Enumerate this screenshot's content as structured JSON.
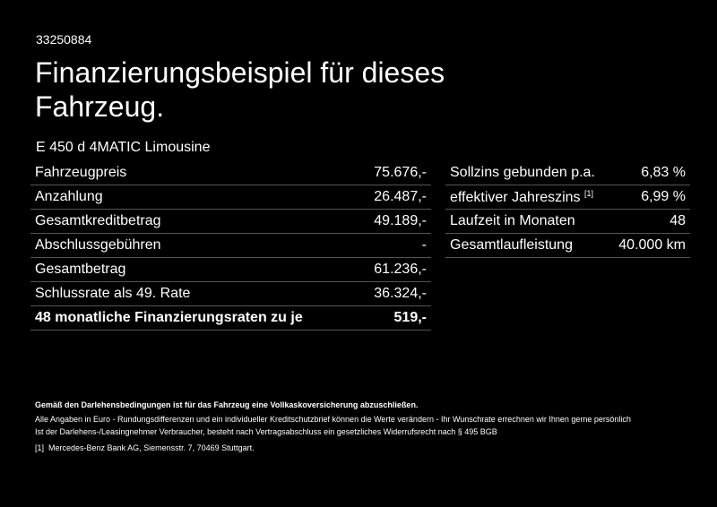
{
  "id": "33250884",
  "title": "Finanzierungsbeispiel für dieses Fahrzeug.",
  "model": "E 450 d 4MATIC Limousine",
  "left_table": [
    {
      "label": "Fahrzeugpreis",
      "value": "75.676,-"
    },
    {
      "label": "Anzahlung",
      "value": "26.487,-"
    },
    {
      "label": "Gesamtkreditbetrag",
      "value": "49.189,-"
    },
    {
      "label": "Abschlussgebühren",
      "value": "-"
    },
    {
      "label": "Gesamtbetrag",
      "value": "61.236,-"
    },
    {
      "label": "Schlussrate als 49. Rate",
      "value": "36.324,-"
    },
    {
      "label": "48 monatliche Finanzierungsraten zu je",
      "value": "519,-"
    }
  ],
  "right_table": [
    {
      "label": "Sollzins gebunden p.a.",
      "value": "6,83 %"
    },
    {
      "label": "effektiver Jahreszins",
      "note": "[1]",
      "value": "6,99 %"
    },
    {
      "label": "Laufzeit in Monaten",
      "value": "48"
    },
    {
      "label": "Gesamtlaufleistung",
      "value": "40.000 km"
    }
  ],
  "footer": {
    "notice": "Gemäß den Darlehensbedingungen ist für das Fahrzeug eine Vollkaskoversicherung abzuschließen.",
    "line1": "Alle Angaben in Euro - Rundungsdifferenzen und ein individueller Kreditschutzbrief können die Werte verändern - Ihr Wunschrate errechnen wir Ihnen gerne persönlich",
    "line2": "Ist der Darlehens-/Leasingnehmer Verbraucher, besteht nach Vertragsabschluss ein gesetzliches Widerrufsrecht nach § 495 BGB",
    "note_mark": "[1]",
    "note_text": "Mercedes-Benz Bank AG, Siemensstr. 7, 70469 Stuttgart."
  }
}
